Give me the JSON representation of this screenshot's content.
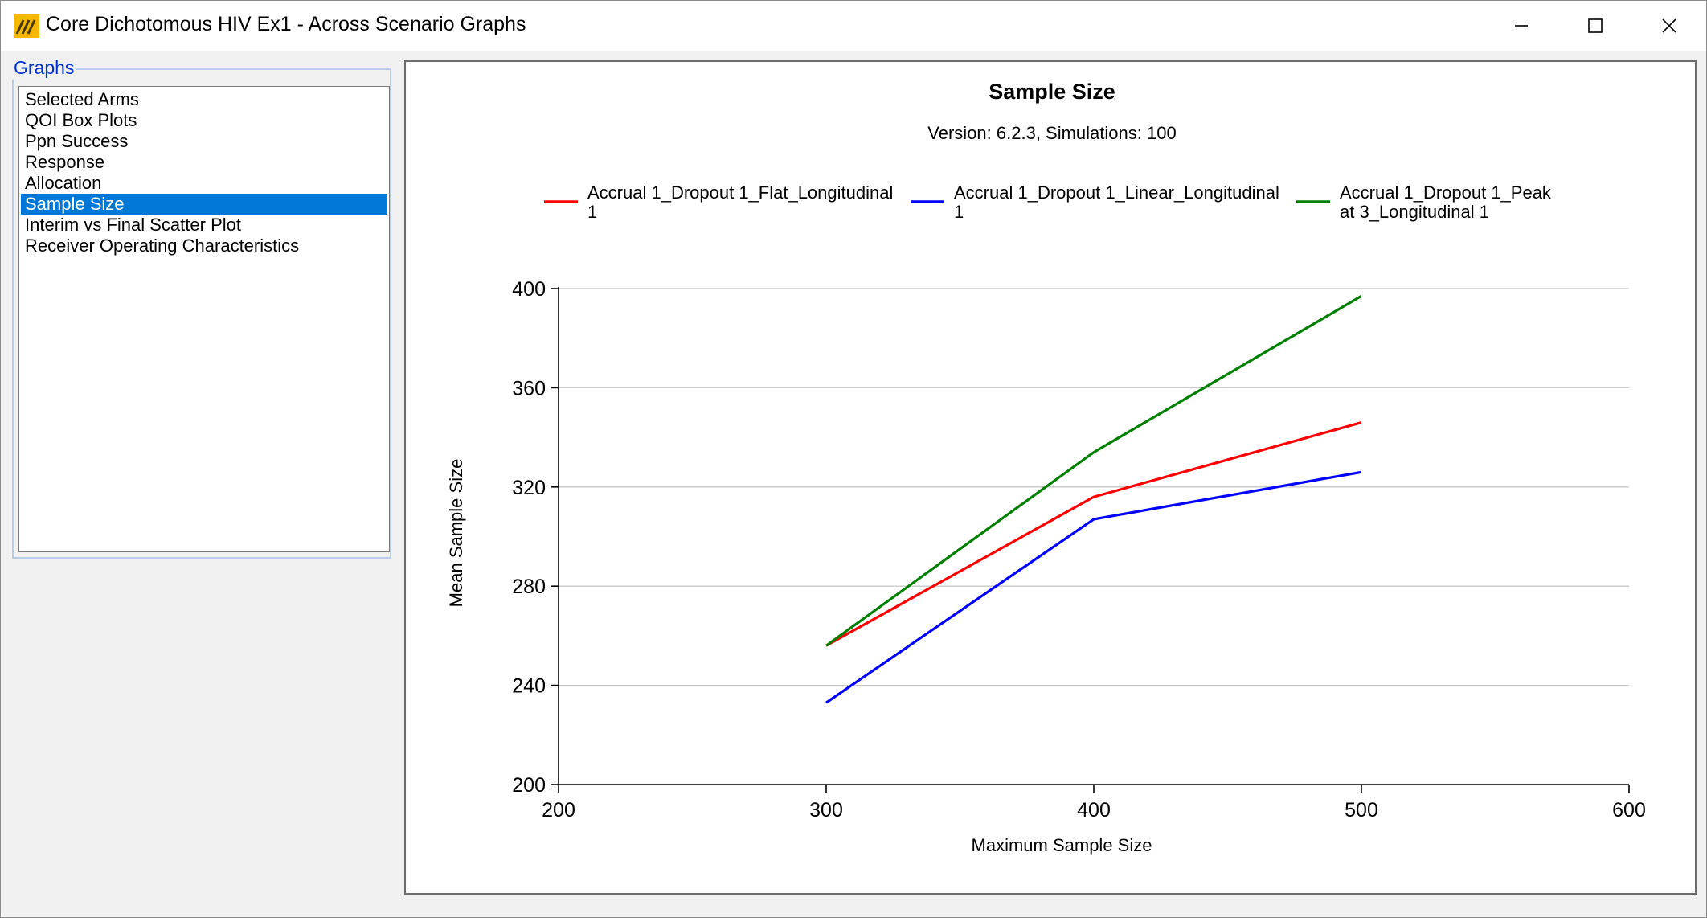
{
  "window": {
    "title": "Core Dichotomous HIV Ex1 - Across Scenario Graphs",
    "icon": "app-logo-icon",
    "controls": [
      "minimize-icon",
      "maximize-icon",
      "close-icon"
    ]
  },
  "graphs": {
    "group_label": "Graphs",
    "items": [
      "Selected Arms",
      "QOI Box Plots",
      "Ppn Success",
      "Response",
      "Allocation",
      "Sample Size",
      "Interim vs Final Scatter Plot",
      "Receiver Operating Characteristics"
    ],
    "selected_index": 5,
    "selection_color": "#0078d7"
  },
  "chart_data": {
    "type": "line",
    "title": "Sample Size",
    "subtitle": "Version: 6.2.3, Simulations: 100",
    "xlabel": "Maximum Sample Size",
    "ylabel": "Mean Sample Size",
    "xlim": [
      200,
      600
    ],
    "ylim": [
      200,
      400
    ],
    "xticks": [
      200,
      300,
      400,
      500,
      600
    ],
    "yticks": [
      200,
      240,
      280,
      320,
      360,
      400
    ],
    "grid": "horizontal",
    "legend_position": "top",
    "x": [
      300,
      400,
      500
    ],
    "series": [
      {
        "name": "Accrual 1_Dropout 1_Flat_Longitudinal 1",
        "legend_lines": [
          "Accrual 1_Dropout 1_Flat_Longitudinal",
          "1"
        ],
        "color": "#ff0000",
        "values": [
          256,
          316,
          346
        ]
      },
      {
        "name": "Accrual 1_Dropout 1_Linear_Longitudinal 1",
        "legend_lines": [
          "Accrual 1_Dropout 1_Linear_Longitudinal",
          "1"
        ],
        "color": "#0000ff",
        "values": [
          233,
          307,
          326
        ]
      },
      {
        "name": "Accrual 1_Dropout 1_Peak at 3_Longitudinal 1",
        "legend_lines": [
          "Accrual 1_Dropout 1_Peak",
          "at 3_Longitudinal 1"
        ],
        "color": "#008000",
        "values": [
          256,
          334,
          397
        ]
      }
    ]
  }
}
